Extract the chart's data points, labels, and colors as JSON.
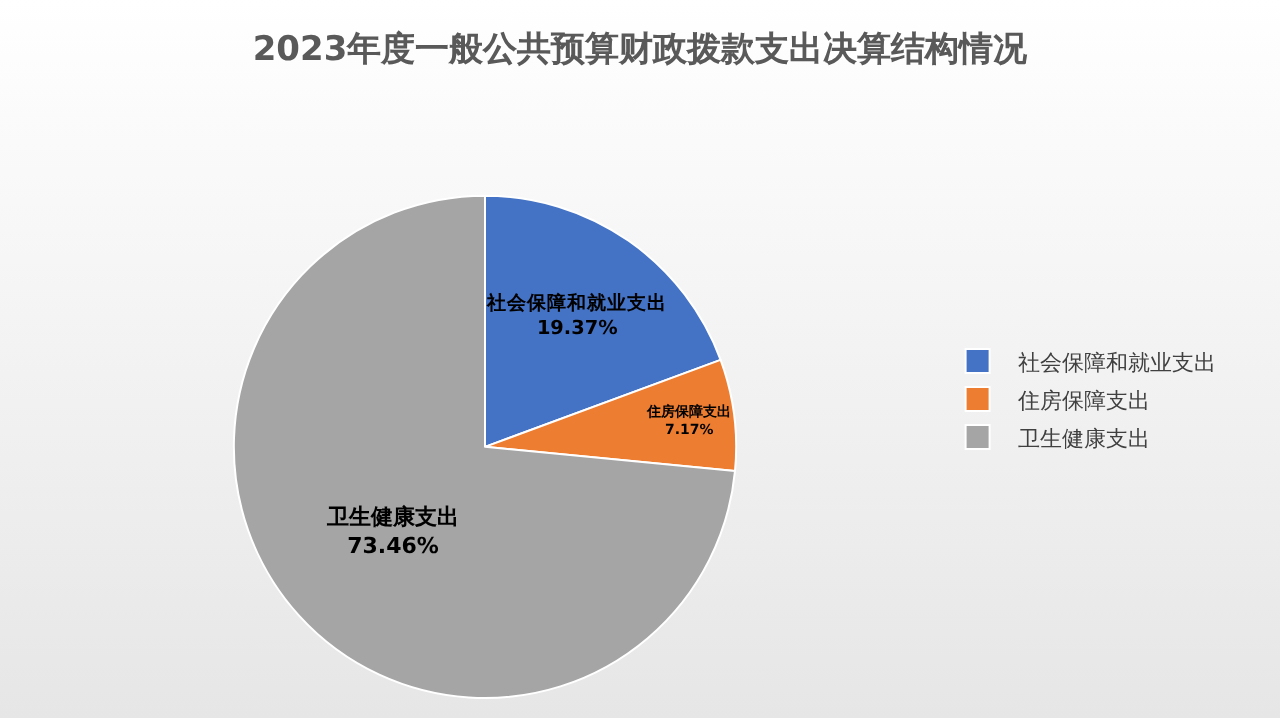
{
  "chart_data": {
    "type": "pie",
    "title": "2023年度一般公共预算财政拨款支出决算结构情况",
    "categories": [
      "社会保障和就业支出",
      "住房保障支出",
      "卫生健康支出"
    ],
    "values": [
      19.37,
      7.17,
      73.46
    ],
    "value_labels": [
      "19.37%",
      "7.17%",
      "73.46%"
    ],
    "colors": [
      "#4472c4",
      "#ed7d31",
      "#a5a5a5"
    ],
    "legend": "right"
  }
}
